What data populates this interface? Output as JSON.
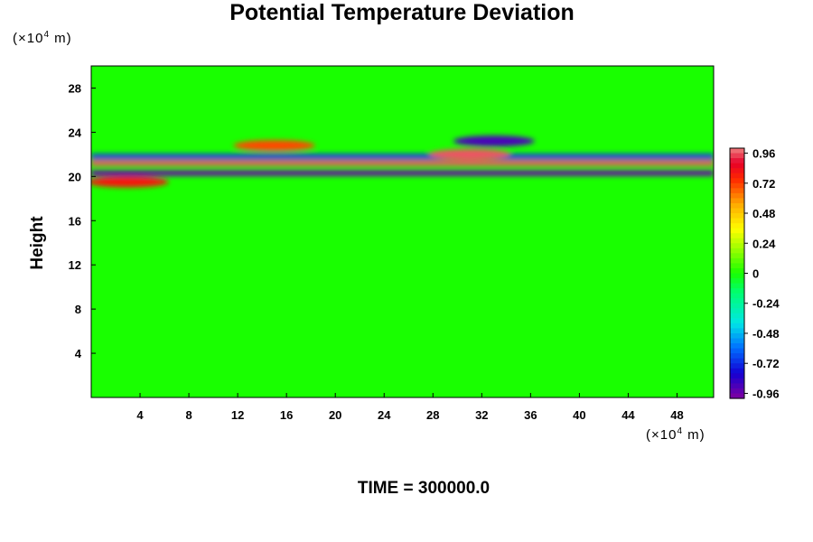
{
  "chart_data": {
    "type": "heatmap",
    "title": "Potential Temperature Deviation",
    "ylabel": "Height",
    "y_unit": {
      "prefix": "(×10",
      "exp": "4",
      "suffix": " m)"
    },
    "x_unit": {
      "prefix": "(×10",
      "exp": "4",
      "suffix": " m)"
    },
    "xlim": [
      0,
      51
    ],
    "ylim": [
      0,
      30
    ],
    "x_ticks": [
      4,
      8,
      12,
      16,
      20,
      24,
      28,
      32,
      36,
      40,
      44,
      48
    ],
    "y_ticks": [
      4,
      8,
      12,
      16,
      20,
      24,
      28
    ],
    "colorbar": {
      "range": [
        -1.0,
        1.0
      ],
      "tick_values": [
        0.96,
        0.72,
        0.48,
        0.24,
        0,
        -0.24,
        -0.48,
        -0.72,
        -0.96
      ],
      "tick_labels": [
        "0.96",
        "0.72",
        "0.48",
        "0.24",
        "0",
        "-0.24",
        "-0.48",
        "-0.72",
        "-0.96"
      ]
    },
    "colors": {
      "background": "#19ff00",
      "positive_max": "#f08080",
      "negative_max": "#8000a0"
    },
    "features": [
      {
        "kind": "band",
        "y": 21.2,
        "value": 0.96,
        "x_from": 0,
        "x_to": 51
      },
      {
        "kind": "band",
        "y": 20.3,
        "value": -0.96,
        "x_from": 0,
        "x_to": 51
      },
      {
        "kind": "band",
        "y": 21.8,
        "value": -0.7,
        "x_from": 0,
        "x_to": 51
      },
      {
        "kind": "blob",
        "x": 31,
        "y": 22.0,
        "value": 0.96
      },
      {
        "kind": "blob",
        "x": 33,
        "y": 23.2,
        "value": -0.9
      },
      {
        "kind": "blob",
        "x": 15,
        "y": 22.8,
        "value": 0.7
      },
      {
        "kind": "blob",
        "x": 3,
        "y": 19.5,
        "value": 0.8
      }
    ]
  },
  "footer": "TIME = 300000.0"
}
